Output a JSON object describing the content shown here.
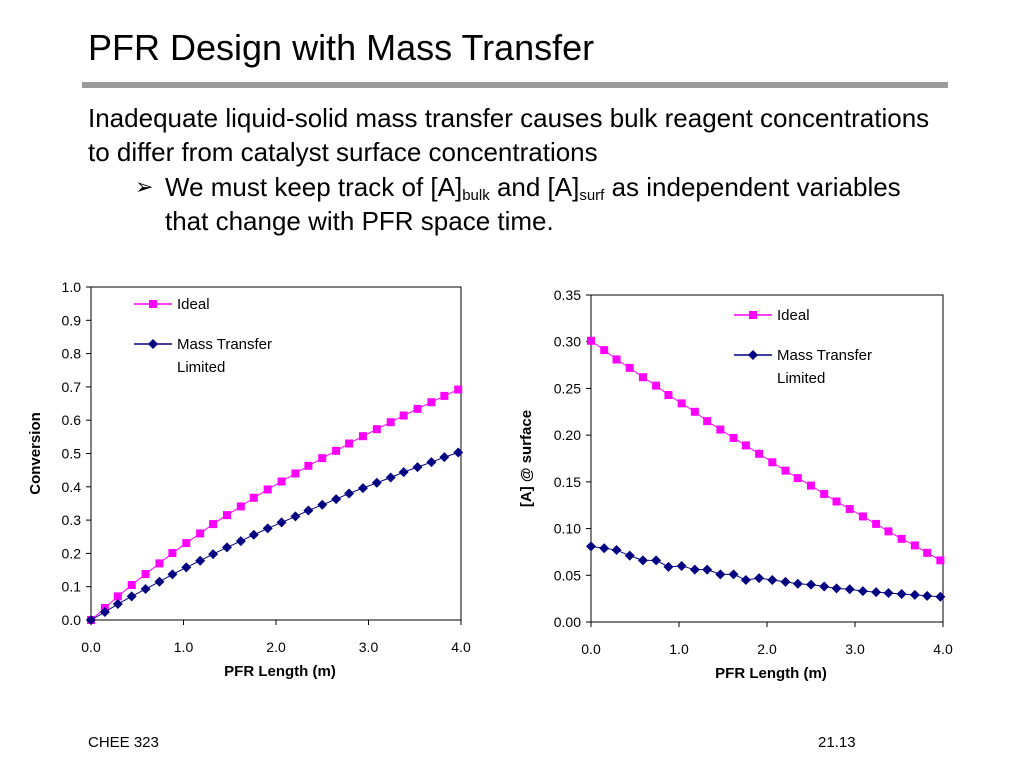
{
  "slide": {
    "title": "PFR Design with Mass Transfer",
    "paragraph": "Inadequate liquid-solid mass transfer causes bulk reagent concentrations to differ from catalyst surface concentrations",
    "bullet": {
      "marker": "➢",
      "part1": "We must keep track of [A]",
      "sub1": "bulk",
      "part2": " and [A]",
      "sub2": "surf",
      "part3": " as independent variables that change with PFR space time."
    },
    "footer_left": "CHEE 323",
    "footer_right": "21.13"
  },
  "chart_data": [
    {
      "type": "line",
      "title": "",
      "xlabel": "PFR Length (m)",
      "ylabel": "Conversion",
      "xlim": [
        0,
        4
      ],
      "ylim": [
        0,
        1
      ],
      "xticks": [
        "0.0",
        "1.0",
        "2.0",
        "3.0",
        "4.0"
      ],
      "yticks": [
        "0.0",
        "0.1",
        "0.2",
        "0.3",
        "0.4",
        "0.5",
        "0.6",
        "0.7",
        "0.8",
        "0.9",
        "1.0"
      ],
      "legend_position": "top-left",
      "x": [
        0.0,
        0.15,
        0.29,
        0.44,
        0.59,
        0.74,
        0.88,
        1.03,
        1.18,
        1.32,
        1.47,
        1.62,
        1.76,
        1.91,
        2.06,
        2.21,
        2.35,
        2.5,
        2.65,
        2.79,
        2.94,
        3.09,
        3.24,
        3.38,
        3.53,
        3.68,
        3.82,
        3.97
      ],
      "series": [
        {
          "name": "Ideal",
          "color": "#ff00ff",
          "marker": "square",
          "values": [
            0.0,
            0.036,
            0.071,
            0.105,
            0.138,
            0.17,
            0.201,
            0.231,
            0.26,
            0.288,
            0.315,
            0.341,
            0.367,
            0.392,
            0.416,
            0.44,
            0.463,
            0.486,
            0.508,
            0.53,
            0.552,
            0.573,
            0.594,
            0.614,
            0.634,
            0.654,
            0.673,
            0.692
          ]
        },
        {
          "name": "Mass Transfer Limited",
          "color": "#000080",
          "marker": "diamond",
          "values": [
            0.0,
            0.024,
            0.048,
            0.071,
            0.093,
            0.115,
            0.137,
            0.158,
            0.178,
            0.198,
            0.218,
            0.237,
            0.256,
            0.275,
            0.293,
            0.311,
            0.329,
            0.346,
            0.363,
            0.38,
            0.396,
            0.412,
            0.428,
            0.444,
            0.459,
            0.474,
            0.489,
            0.503
          ]
        }
      ]
    },
    {
      "type": "line",
      "title": "",
      "xlabel": "PFR Length (m)",
      "ylabel": "[A] @ surface",
      "xlim": [
        0,
        4
      ],
      "ylim": [
        0,
        0.35
      ],
      "xticks": [
        "0.0",
        "1.0",
        "2.0",
        "3.0",
        "4.0"
      ],
      "yticks": [
        "0.00",
        "0.05",
        "0.10",
        "0.15",
        "0.20",
        "0.25",
        "0.30",
        "0.35"
      ],
      "legend_position": "top-right",
      "x": [
        0.0,
        0.15,
        0.29,
        0.44,
        0.59,
        0.74,
        0.88,
        1.03,
        1.18,
        1.32,
        1.47,
        1.62,
        1.76,
        1.91,
        2.06,
        2.21,
        2.35,
        2.5,
        2.65,
        2.79,
        2.94,
        3.09,
        3.24,
        3.38,
        3.53,
        3.68,
        3.82,
        3.97
      ],
      "series": [
        {
          "name": "Ideal",
          "color": "#ff00ff",
          "marker": "square",
          "values": [
            0.301,
            0.291,
            0.281,
            0.272,
            0.262,
            0.253,
            0.243,
            0.234,
            0.225,
            0.215,
            0.206,
            0.197,
            0.189,
            0.18,
            0.171,
            0.162,
            0.154,
            0.146,
            0.137,
            0.129,
            0.121,
            0.113,
            0.105,
            0.097,
            0.089,
            0.082,
            0.074,
            0.066
          ]
        },
        {
          "name": "Mass Transfer Limited",
          "color": "#000080",
          "marker": "diamond",
          "values": [
            0.081,
            0.079,
            0.077,
            0.071,
            0.066,
            0.066,
            0.059,
            0.06,
            0.056,
            0.056,
            0.051,
            0.051,
            0.045,
            0.047,
            0.045,
            0.043,
            0.041,
            0.04,
            0.038,
            0.036,
            0.035,
            0.033,
            0.032,
            0.031,
            0.03,
            0.029,
            0.028,
            0.027
          ]
        }
      ]
    }
  ]
}
